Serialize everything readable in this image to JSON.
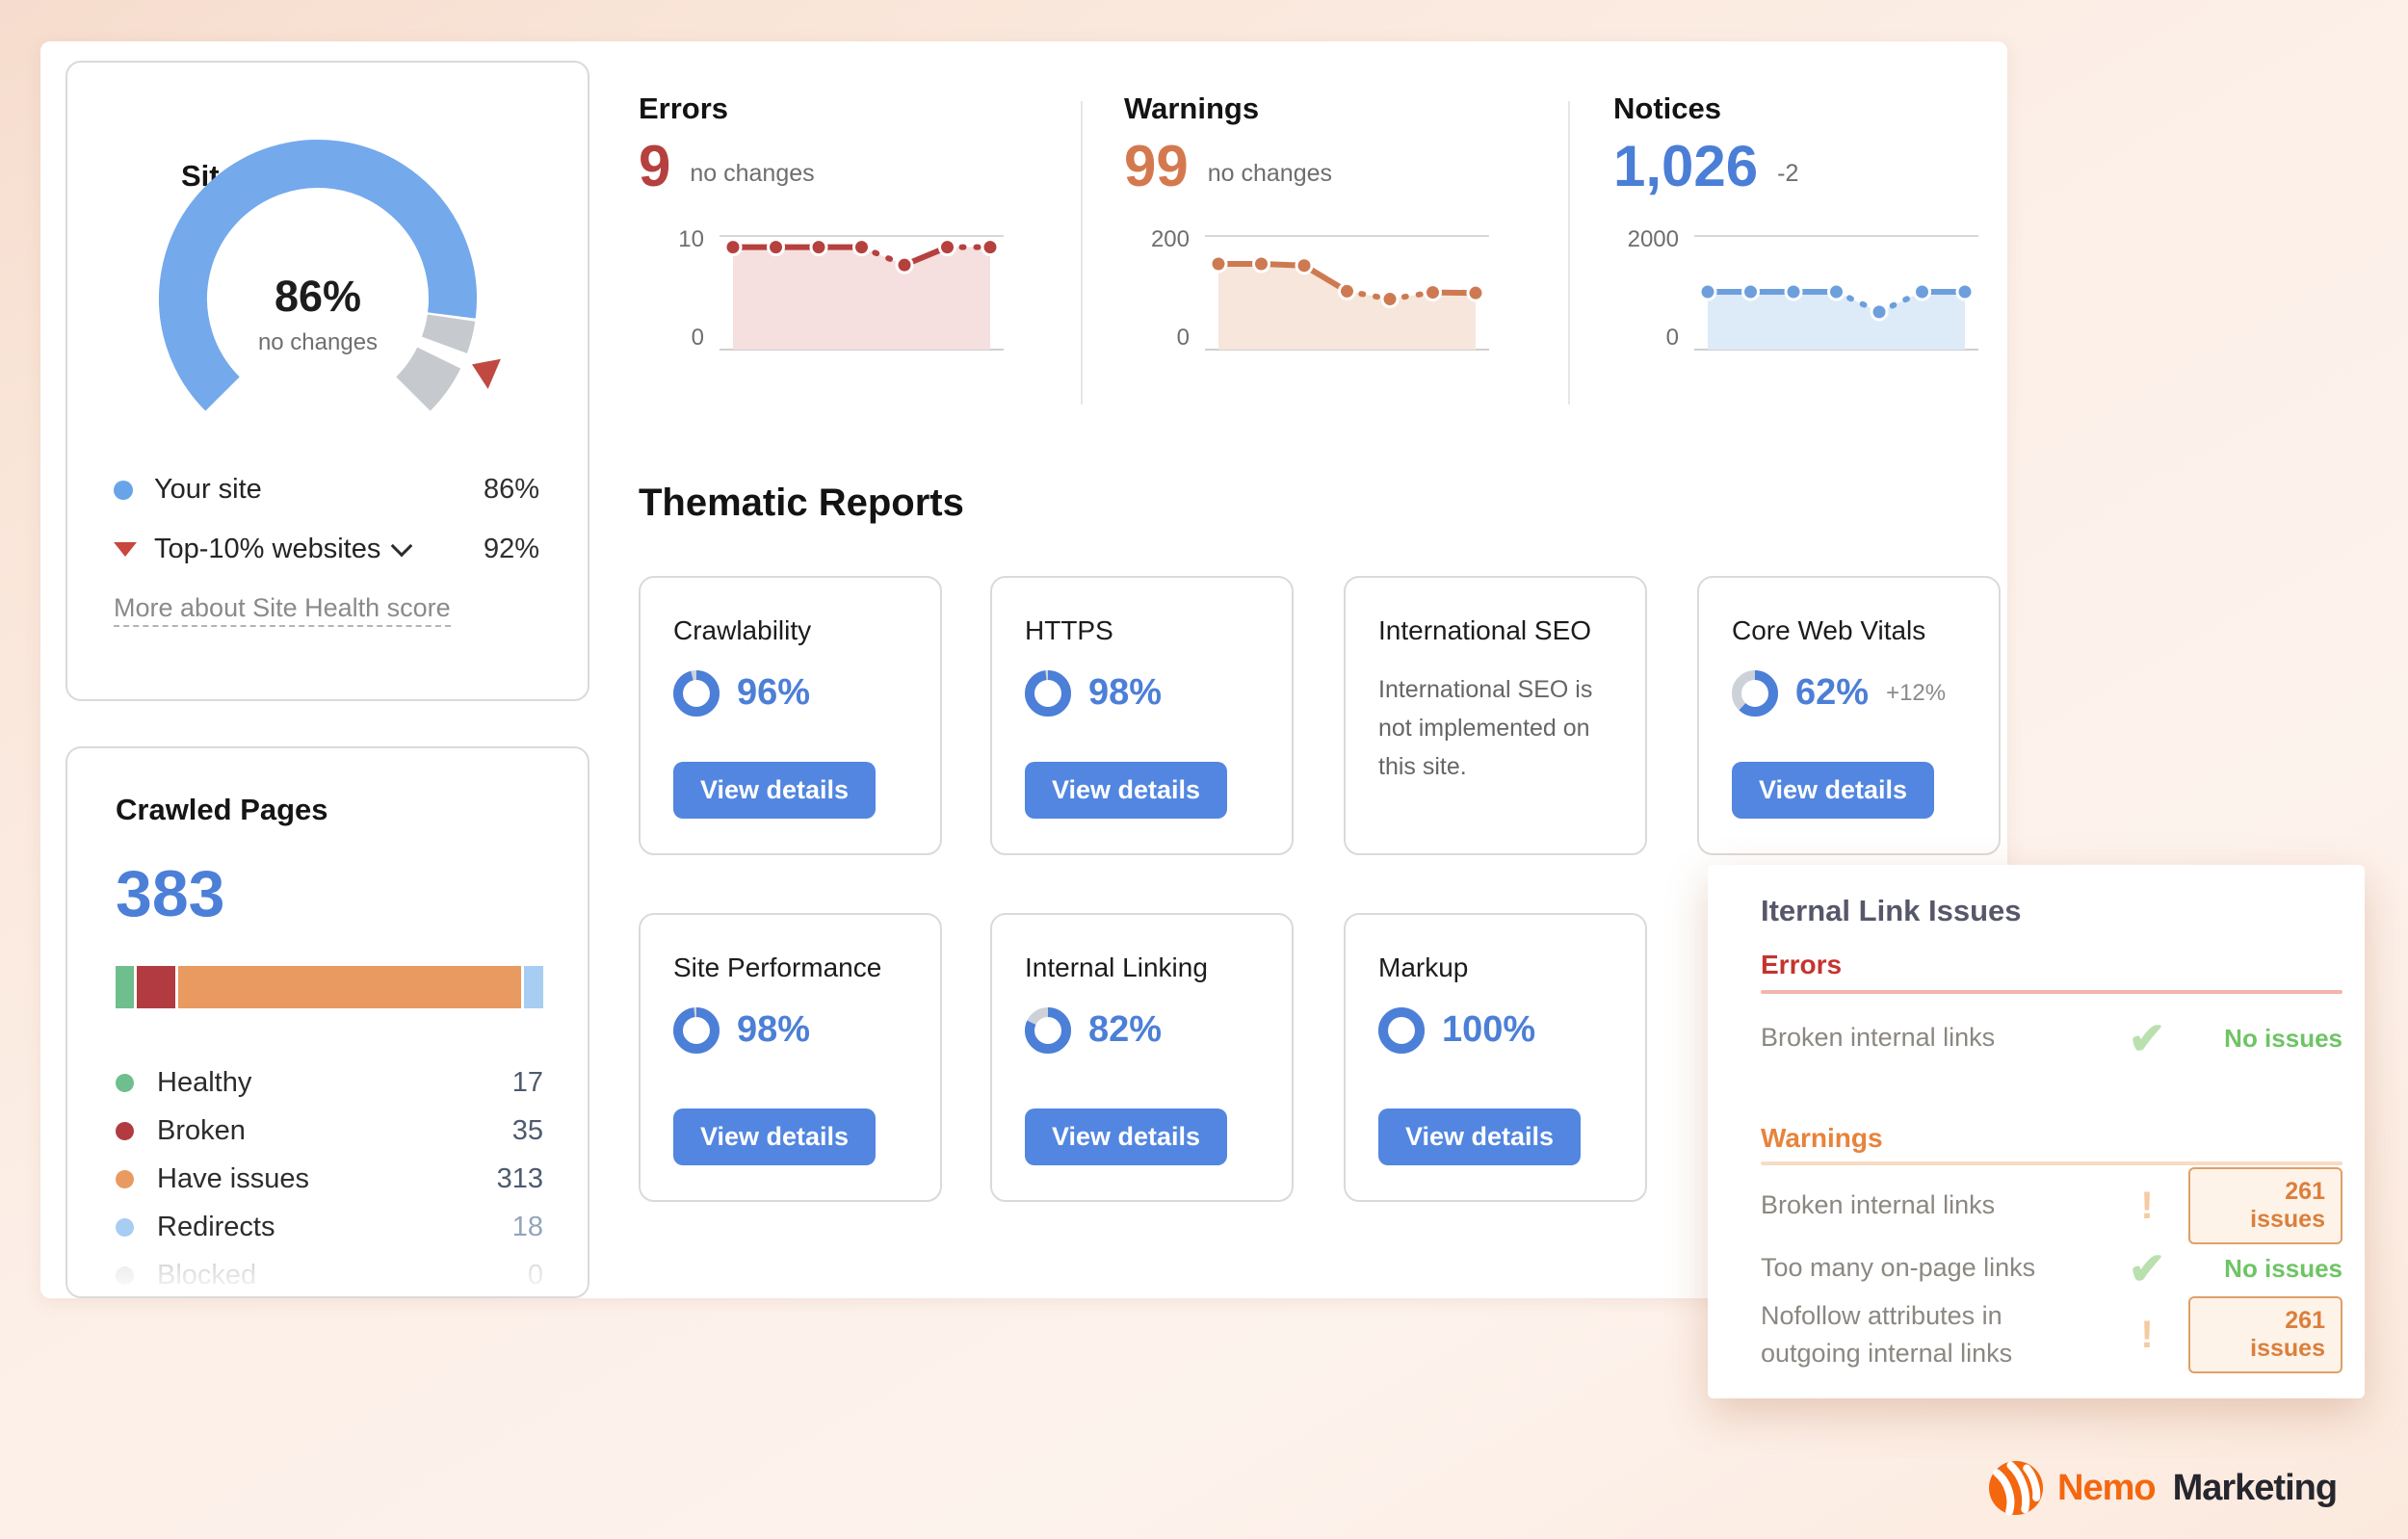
{
  "site_health": {
    "title": "Site Health",
    "score": "86%",
    "change": "no changes",
    "dot_color": "#68a4e8",
    "gauge": {
      "value": 86,
      "benchmark": 92,
      "color": "#74a9ec",
      "track": "#c6c9ce",
      "marker": "#c04a42"
    },
    "legend": [
      {
        "label": "Your site",
        "value": "86%"
      },
      {
        "label": "Top-10% websites",
        "value": "92%"
      }
    ],
    "link": "More about Site Health score"
  },
  "metrics": [
    {
      "title": "Errors",
      "value": "9",
      "change": "no changes",
      "axis_max": "10",
      "axis_min": "0",
      "color": "#b5403e",
      "fill": "#f6dfdf",
      "ymax": 10,
      "spark": [
        9,
        9,
        9,
        9,
        7.4,
        9,
        9
      ],
      "dashed": [
        3,
        5
      ]
    },
    {
      "title": "Warnings",
      "value": "99",
      "change": "no changes",
      "axis_max": "200",
      "axis_min": "0",
      "color": "#cd7a52",
      "fill": "#f7e6db",
      "ymax": 200,
      "spark": [
        150,
        150,
        147,
        101,
        87,
        99,
        98
      ],
      "dashed": [
        3,
        4
      ]
    },
    {
      "title": "Notices",
      "value": "1,026",
      "change": "-2",
      "axis_max": "2000",
      "axis_min": "0",
      "color": "#6d9fdd",
      "fill": "#ddebf8",
      "ymax": 2000,
      "spark": [
        1000,
        1000,
        1000,
        1000,
        640,
        1000,
        1000
      ],
      "dashed": [
        3,
        4
      ]
    }
  ],
  "thematic": {
    "heading": "Thematic Reports",
    "button_label": "View details",
    "donut_color": "#4c7fd7",
    "donut_track": "#cdd2d9",
    "cards": [
      {
        "title": "Crawlability",
        "pct": 96,
        "pct_label": "96%"
      },
      {
        "title": "HTTPS",
        "pct": 98,
        "pct_label": "98%"
      },
      {
        "title": "International SEO",
        "note": "International SEO is not implemented on this site."
      },
      {
        "title": "Core Web Vitals",
        "pct": 62,
        "pct_label": "62%",
        "delta": "+12%"
      },
      {
        "title": "Site Performance",
        "pct": 98,
        "pct_label": "98%"
      },
      {
        "title": "Internal Linking",
        "pct": 82,
        "pct_label": "82%"
      },
      {
        "title": "Markup",
        "pct": 100,
        "pct_label": "100%"
      }
    ]
  },
  "crawled_pages": {
    "title": "Crawled Pages",
    "total": "383",
    "rows": [
      {
        "label": "Healthy",
        "value": "17",
        "color": "#6fbe8e"
      },
      {
        "label": "Broken",
        "value": "35",
        "color": "#b23b42"
      },
      {
        "label": "Have issues",
        "value": "313",
        "color": "#e99a60"
      },
      {
        "label": "Redirects",
        "value": "18",
        "color": "#a7cdf2"
      },
      {
        "label": "Blocked",
        "value": "0",
        "color": "#e5e5e5"
      }
    ]
  },
  "link_issues": {
    "title": "Iternal Link Issues",
    "errors_header": "Errors",
    "warnings_header": "Warnings",
    "no_issues_label": "No issues",
    "errors_rows": [
      {
        "label": "Broken internal links",
        "status": "ok"
      }
    ],
    "warnings_rows": [
      {
        "label": "Broken internal links",
        "status": "warn",
        "badge": "261 issues"
      },
      {
        "label": "Too many on-page links",
        "status": "ok"
      },
      {
        "label": "Nofollow attributes in outgoing internal links",
        "status": "warn",
        "badge": "261 issues"
      }
    ]
  },
  "logo": {
    "primary": "Nemo",
    "secondary": "Marketing"
  }
}
